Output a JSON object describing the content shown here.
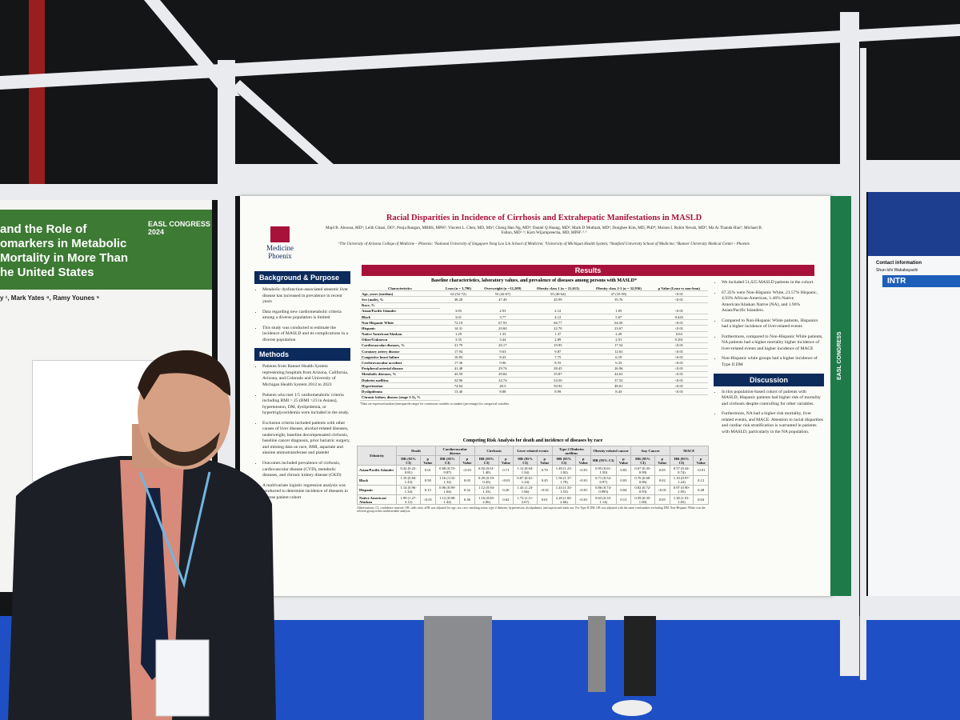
{
  "main_poster": {
    "logo": "Medicine Phoenix",
    "title": "Racial Disparities in Incidence of Cirrhosis and Extrahepatic Manifestations in MASLD",
    "authors": "Majd B. Aboona, MD¹; Leith Ghani, DO¹; Pooja Rangan, MBBS, MPH²; Vincent L. Chen, MD, MS³; Cheng Han Ng, MD²; Daniel Q Huang, MD²; Mark D Muthiah, MD²; Donghee Kim, MD, PhD⁴; Moises I. Rubin Nevah, MD⁵; Ma Ai Thanda Han⁵; Michael B. Fallon, MD¹˒⁵; Karn Wijarnpreecha, MD, MPH¹˒³˒⁵",
    "affiliations": "¹The University of Arizona College of Medicine – Phoenix; ²National University of Singapore Yong Loo Lin School of Medicine; ³University of Michigan Health System; ⁴Stanford University School of Medicine; ⁵Banner University Medical Center - Phoenix",
    "left_sections": [
      {
        "heading": "Background & Purpose",
        "items": [
          "Metabolic dysfunction-associated steatotic liver disease has increased in prevalence in recent years",
          "Data regarding new cardiometabolic criteria among a diverse population is limited",
          "This study was conducted to estimate the incidence of MASLD and its complications in a diverse population"
        ]
      },
      {
        "heading": "Methods",
        "items": [
          "Patients from Banner Health System representing hospitals from Arizona, California, Arizona, and Colorado and University of Michigan Health System 2012 to 2023",
          "Patients who met 1/5 cardiometabolic criteria including BMI > 25 (BMI >23 in Asians), hypertension, DM, dyslipidemia, or hypertriglyceridemia were included in the study.",
          "Exclusion criteria included patients with other causes of liver disease, alcohol-related diseases, underweight, baseline decompensated cirrhosis, baseline cancer diagnosis, prior bariatric surgery, and missing data on race, BMI, aspartate and alanine aminotransferase and platelet",
          "Outcomes included prevalence of cirrhosis, cardiovascular disease (CVD), metabolic diseases, and chronic kidney disease (CKD)",
          "A multivariate logistic regression analysis was conducted to determine incidence of diseases in diverse patient cohort"
        ]
      }
    ],
    "results_heading": "Results",
    "table1": {
      "title": "Baseline characteristics, laboratory values, and prevalence of diseases among persons with MASLD*",
      "header": [
        "Characteristics",
        "Lean (n = 3,790)",
        "Overweight (n =12,208)",
        "Obesity class 1 (n = 21,613)",
        "Obesity class 2-3 (n = 32,936)",
        "p Value (Lean vs non-lean)"
      ],
      "rows": [
        [
          "Age, years (median)",
          "63 (52-72)",
          "55 (42-67)",
          "53 (40-64)",
          "47 (35-58)",
          "<0.01"
        ],
        [
          "Sex (male), %",
          "38.28",
          "47.49",
          "45.99",
          "35.76",
          "<0.01"
        ],
        [
          "Race, %"
        ],
        [
          "Asian/Pacific Islander",
          "3.85",
          "2.93",
          "2.12",
          "1.05",
          "<0.01"
        ],
        [
          "Black",
          "3.01",
          "3.77",
          "4.12",
          "5.67",
          "0.443"
        ],
        [
          "Non-Hispanic White",
          "72.19",
          "67.93",
          "66.77",
          "64.50",
          "<0.01"
        ],
        [
          "Hispanic",
          "14.31",
          "20.60",
          "22.70",
          "23.67",
          "<0.01"
        ],
        [
          "Native American/Alaskan",
          "1.29",
          "1.33",
          "1.37",
          "2.20",
          "0.04"
        ],
        [
          "Other/Unknown",
          "3.35",
          "3.44",
          "2.89",
          "2.91",
          "0.261"
        ],
        [
          "Cardiovascular diseases, %",
          "31.79",
          "20.17",
          "19.95",
          "17.54",
          "<0.01"
        ],
        [
          "Coronary artery disease",
          "17.94",
          "9.63",
          "9.87",
          "12.63",
          "<0.01"
        ],
        [
          "Congestive heart failure",
          "16.83",
          "8.43",
          "7.75",
          "6.19",
          "<0.01"
        ],
        [
          "Cerebrovascular accident",
          "17.36",
          "9.96",
          "8.55",
          "6.33",
          "<0.01"
        ],
        [
          "Peripheral arterial disease",
          "41.48",
          "29.74",
          "28.45",
          "26.96",
          "<0.01"
        ],
        [
          "Metabolic diseases, %",
          "43.59",
          "29.84",
          "35.87",
          "44.63",
          "<0.01"
        ],
        [
          "Diabetes mellitus",
          "52.96",
          "32.74",
          "34.50",
          "37.52",
          "<0.01"
        ],
        [
          "Hypertension",
          "74.64",
          "49.5",
          "50.92",
          "48.01",
          "<0.01"
        ],
        [
          "Dyslipidemia",
          "13.40",
          "8.88",
          "8.99",
          "8.43",
          "<0.01"
        ],
        [
          "Chronic kidney disease (stage 3-5), %"
        ]
      ],
      "footnote": "*Data are expressed median (interquartile range) for continuous variables or number (percentage) for categorical variables."
    },
    "table2": {
      "title": "Competing Risk Analysis for death and incidence of diseases by race",
      "groups": [
        "Death",
        "Cardiovascular disease",
        "Cirrhosis",
        "Liver-related events",
        "Type 2 Diabetes mellitus",
        "Obesity-related cancer",
        "Any Cancer",
        "MACE"
      ],
      "first_header": "Ethnicity",
      "hr_header": "HR (95% CI)",
      "p_header": "p Value",
      "rows": [
        [
          "Asian/Pacific Islander",
          "0.42 (0.22-0.81)",
          "0.01",
          "0.68 (0.53-0.87)",
          "<0.01",
          "0.92 (0.61-1.40)",
          "0.71",
          "1.12 (0.64-1.94)",
          "0.70",
          "1.49 (1.23-1.82)",
          "<0.01",
          "0.95 (0.61-1.50)",
          "0.83",
          "0.67 (0.45-0.99)",
          "0.05",
          "0.57 (0.44-0.74)",
          "<0.01"
        ],
        [
          "Black",
          "1.10 (0.84-1.43)",
          "0.50",
          "1.16 (1.02-1.32)",
          "0.03",
          "0.29 (0.19-0.45)",
          "<0.01",
          "0.87 (0.61-1.24)",
          "0.45",
          "1.56 (1.37-1.78)",
          "<0.01",
          "0.71 (0.52-0.97)",
          "0.03",
          "0.76 (0.60-0.96)",
          "0.02",
          "1.10 (0.97-1.24)",
          "0.12"
        ],
        [
          "Hispanic",
          "1.14 (0.96-1.34)",
          "0.13",
          "0.96 (0.89-1.04)",
          "0.32",
          "1.12 (0.94-1.33)",
          "0.20",
          "1.43 (1.23-1.66)",
          "<0.01",
          "1.43 (1.33-1.53)",
          "<0.01",
          "0.86 (0.74-0.995)",
          "0.04",
          "0.82 (0.72-0.93)",
          "<0.01",
          "0.97 (0.90-1.05)",
          "0.48"
        ],
        [
          "Native American/ Alaskan",
          "1.99 (1.27-3.12)",
          "<0.01",
          "1.12 (0.88-1.42)",
          "0.36",
          "1.16 (0.65-2.06)",
          "0.62",
          "1.72 (1.11-2.67)",
          "0.01",
          "2.20 (1.82-2.66)",
          "<0.01",
          "0.63 (0.35-1.14)",
          "0.13",
          "0.59 (0.35-1.00)",
          "0.05",
          "1.30 (1.01-1.65)",
          "0.04"
        ]
      ],
      "footnote": "Abbreviations: CI, confidence interval; OR, odds ratio. aOR was adjusted for age, sex, race, smoking status, type 2 diabetes, hypertension, dyslipidemia, and aspirin and statin use. For Type II DM, OR was adjusted with the same confounders excluding DM. Non-Hispanic White was the referent group in this multivariable analysis."
    },
    "right_items": [
      "We included 51,625 MASLD patients in the cohort.",
      "67.35% were Non-Hispanic White, 21.57% Hispanic, 4.93% African-American, 1.46% Native American/Alaskan Native (NA), and 1.96% Asian/Pacific Islanders.",
      "Compared to Non-Hispanic White patients, Hispanics had a higher incidence of liver-related events",
      "Furthermore, compared to Non-Hispanic White patients, NA patients had a higher mortality higher incidence of liver-related events and higher incidence of MACE",
      "Non-Hispanic white groups had a higher incidence of Type II DM"
    ],
    "discussion": {
      "heading": "Discussion",
      "items": [
        "In this population-based cohort of patients with MASLD, Hispanic patients had higher risk of mortality and cirrhosis despite controlling for other variables.",
        "Furthermore, NA had a higher risk mortality, liver related events, and MACE. Attention to racial disparities and cardiac risk stratification is warranted in patients with MASLD, particularly in the NA population."
      ]
    },
    "strip_text": "EASL CONGRESS"
  },
  "left_poster": {
    "title_lines": [
      "and the Role of",
      "omarkers in Metabolic",
      "Mortality in More Than",
      "he United States"
    ],
    "authors": "y ¹, Mark Yates ⁴, Ramy Younes ⁵",
    "congress": "EASL CONGRESS 2024"
  },
  "right_poster": {
    "contact": "Contact information",
    "contact_name": "Shun-Ichi Wakabayashi",
    "intro": "INTR"
  }
}
